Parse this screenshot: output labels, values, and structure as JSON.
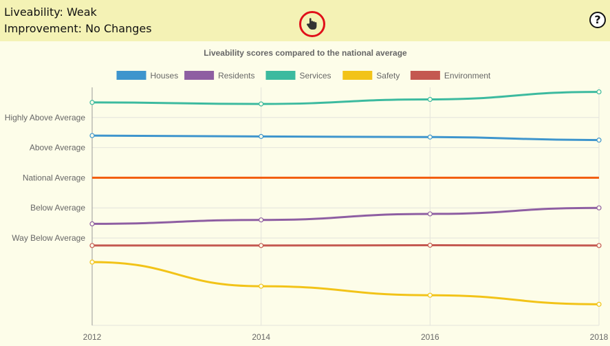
{
  "header": {
    "liveability_text": "Liveability: Weak",
    "improvement_text": "Improvement: No Changes",
    "help_label": "?",
    "pointer_icon": "hand-pointer-icon",
    "help_icon": "question-circle-icon"
  },
  "chart_data": {
    "type": "line",
    "title": "Liveability scores compared to the national average",
    "x": [
      "2012",
      "2014",
      "2016",
      "2018"
    ],
    "y_tick_labels": [
      "Way Below Average",
      "Below Average",
      "National Average",
      "Above Average",
      "Highly Above Average"
    ],
    "y_tick_values": [
      1,
      2,
      3,
      4,
      5
    ],
    "ylim": [
      -1.9,
      6.0
    ],
    "grid": true,
    "legend_position": "top",
    "series": [
      {
        "name": "Houses",
        "color": "#3e95cd",
        "values": [
          4.4,
          4.37,
          4.35,
          4.25
        ]
      },
      {
        "name": "Residents",
        "color": "#8e5ea2",
        "values": [
          1.47,
          1.6,
          1.8,
          2.0
        ]
      },
      {
        "name": "Services",
        "color": "#3cba9f",
        "values": [
          5.5,
          5.45,
          5.6,
          5.85
        ]
      },
      {
        "name": "Safety",
        "color": "#f2c318",
        "values": [
          0.2,
          -0.6,
          -0.9,
          -1.2
        ]
      },
      {
        "name": "Environment",
        "color": "#c45850",
        "values": [
          0.75,
          0.75,
          0.76,
          0.75
        ]
      }
    ],
    "reference_line": {
      "value": 3,
      "color": "#f25c0d"
    }
  }
}
